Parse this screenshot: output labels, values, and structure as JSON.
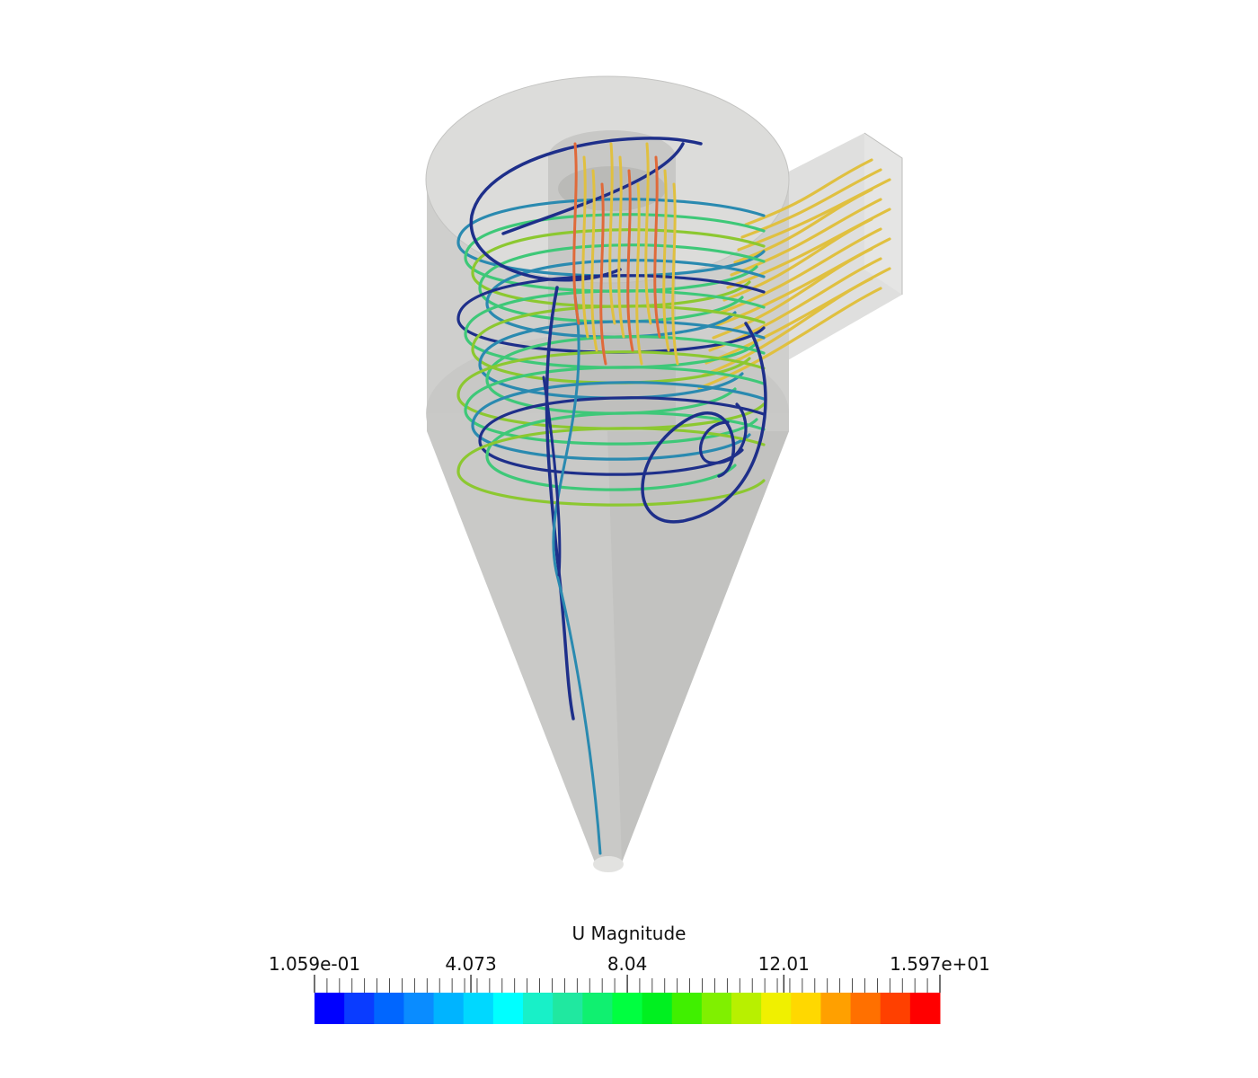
{
  "colorbar": {
    "title": "U Magnitude",
    "range": [
      0.1059,
      15.97
    ],
    "tick_labels": [
      "1.059e-01",
      "4.073",
      "8.04",
      "12.01",
      "1.597e+01"
    ],
    "tick_values": [
      0.1059,
      4.073,
      8.04,
      12.01,
      15.97
    ],
    "bands": [
      "#0000ff",
      "#0a3cff",
      "#0066ff",
      "#0a8cff",
      "#00b4ff",
      "#00d8ff",
      "#00ffff",
      "#18f0c8",
      "#20e8a0",
      "#10f070",
      "#00ff40",
      "#00f020",
      "#40f000",
      "#80f000",
      "#b8f000",
      "#f0f000",
      "#ffd800",
      "#ffa000",
      "#ff7000",
      "#ff4000",
      "#ff0000"
    ]
  },
  "scene": {
    "geometry": "cyclone-separator",
    "surface_color": "#d8d8d6",
    "streamline_colors": {
      "low": "#1e2f8a",
      "mid_low": "#2a8ab0",
      "mid": "#3ec878",
      "mid_high": "#8cc830",
      "high": "#e0c040",
      "peak": "#e06a3a"
    }
  }
}
